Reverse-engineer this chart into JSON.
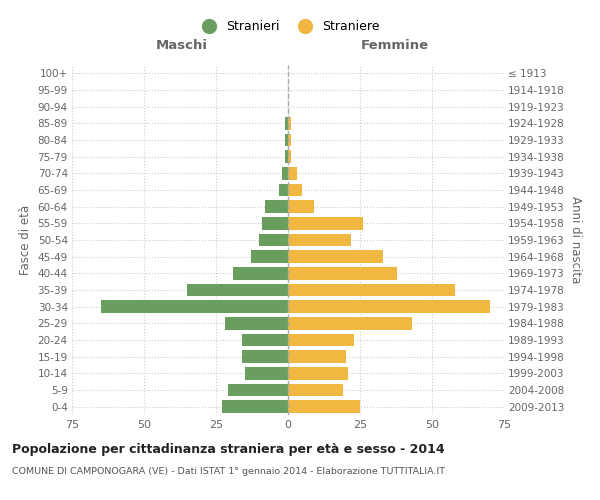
{
  "age_groups": [
    "0-4",
    "5-9",
    "10-14",
    "15-19",
    "20-24",
    "25-29",
    "30-34",
    "35-39",
    "40-44",
    "45-49",
    "50-54",
    "55-59",
    "60-64",
    "65-69",
    "70-74",
    "75-79",
    "80-84",
    "85-89",
    "90-94",
    "95-99",
    "100+"
  ],
  "birth_years": [
    "2009-2013",
    "2004-2008",
    "1999-2003",
    "1994-1998",
    "1989-1993",
    "1984-1988",
    "1979-1983",
    "1974-1978",
    "1969-1973",
    "1964-1968",
    "1959-1963",
    "1954-1958",
    "1949-1953",
    "1944-1948",
    "1939-1943",
    "1934-1938",
    "1929-1933",
    "1924-1928",
    "1919-1923",
    "1914-1918",
    "≤ 1913"
  ],
  "maschi": [
    23,
    21,
    15,
    16,
    16,
    22,
    65,
    35,
    19,
    13,
    10,
    9,
    8,
    3,
    2,
    1,
    1,
    1,
    0,
    0,
    0
  ],
  "femmine": [
    25,
    19,
    21,
    20,
    23,
    43,
    70,
    58,
    38,
    33,
    22,
    26,
    9,
    5,
    3,
    1,
    1,
    1,
    0,
    0,
    0
  ],
  "color_maschi": "#6a9e5e",
  "color_femmine": "#f0b840",
  "xlim": 75,
  "title": "Popolazione per cittadinanza straniera per età e sesso - 2014",
  "subtitle": "COMUNE DI CAMPONOGARA (VE) - Dati ISTAT 1° gennaio 2014 - Elaborazione TUTTITALIA.IT",
  "label_maschi": "Stranieri",
  "label_femmine": "Straniere",
  "xlabel_left": "Maschi",
  "xlabel_right": "Femmine",
  "ylabel": "Fasce di età",
  "ylabel_right": "Anni di nascita",
  "bg_color": "#ffffff",
  "grid_color": "#cccccc"
}
